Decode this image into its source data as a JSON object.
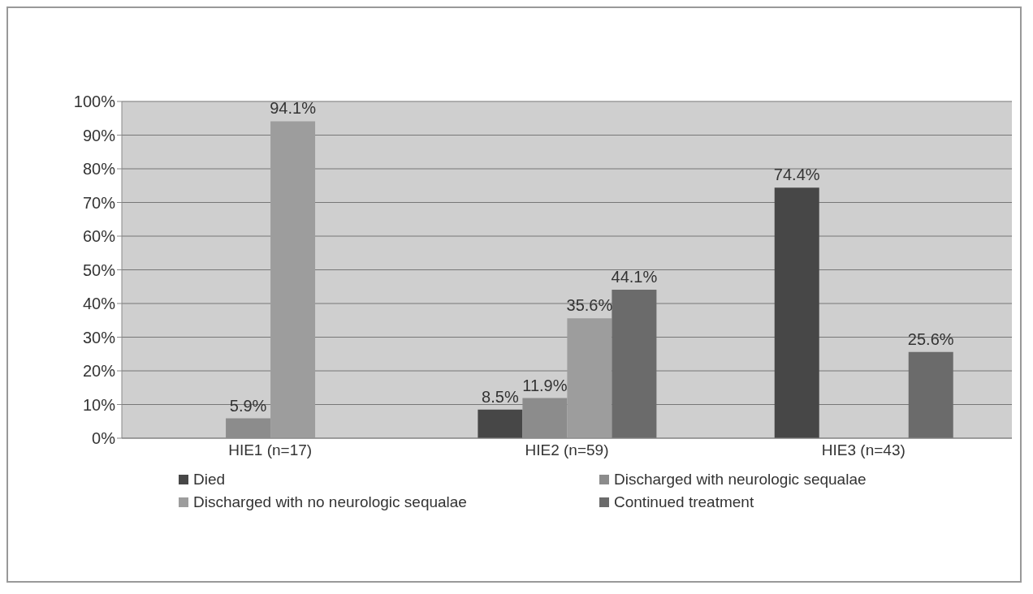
{
  "chart_data": {
    "type": "bar",
    "categories": [
      "HIE1 (n=17)",
      "HIE2 (n=59)",
      "HIE3 (n=43)"
    ],
    "series": [
      {
        "name": "Died",
        "color": "#474747",
        "values": [
          null,
          8.5,
          74.4
        ],
        "value_labels": [
          null,
          "8.5%",
          "74.4%"
        ]
      },
      {
        "name": "Discharged with neurologic sequalae",
        "color": "#8c8c8c",
        "values": [
          5.9,
          11.9,
          null
        ],
        "value_labels": [
          "5.9%",
          "11.9%",
          null
        ]
      },
      {
        "name": "Discharged with no neurologic sequalae",
        "color": "#9d9d9d",
        "values": [
          94.1,
          35.6,
          null
        ],
        "value_labels": [
          "94.1%",
          "35.6%",
          null
        ]
      },
      {
        "name": "Continued treatment",
        "color": "#6b6b6b",
        "values": [
          null,
          44.1,
          25.6
        ],
        "value_labels": [
          null,
          "44.1%",
          "25.6%"
        ]
      }
    ],
    "ylim": [
      0,
      100
    ],
    "yticks": [
      {
        "value": 0,
        "label": "0%"
      },
      {
        "value": 10,
        "label": "10%"
      },
      {
        "value": 20,
        "label": "20%"
      },
      {
        "value": 30,
        "label": "30%"
      },
      {
        "value": 40,
        "label": "40%"
      },
      {
        "value": 50,
        "label": "50%"
      },
      {
        "value": 60,
        "label": "60%"
      },
      {
        "value": 70,
        "label": "70%"
      },
      {
        "value": 80,
        "label": "80%"
      },
      {
        "value": 90,
        "label": "90%"
      },
      {
        "value": 100,
        "label": "100%"
      }
    ],
    "grid": "y",
    "legend": "bottom"
  }
}
